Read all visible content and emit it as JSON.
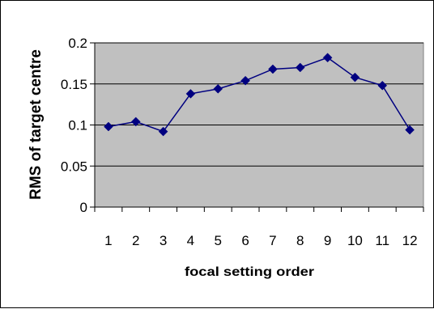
{
  "chart_data": {
    "type": "line",
    "title": "",
    "xlabel": "focal setting order",
    "ylabel": "RMS of target centre",
    "categories": [
      "1",
      "2",
      "3",
      "4",
      "5",
      "6",
      "7",
      "8",
      "9",
      "10",
      "11",
      "12"
    ],
    "series": [
      {
        "values": [
          0.098,
          0.104,
          0.092,
          0.138,
          0.144,
          0.154,
          0.168,
          0.17,
          0.182,
          0.158,
          0.148,
          0.094
        ],
        "color": "#000080",
        "marker": "diamond"
      }
    ],
    "ylim": [
      0,
      0.2
    ],
    "yticks": [
      0,
      0.05,
      0.1,
      0.15,
      0.2
    ],
    "ytick_labels": [
      "0",
      "0.05",
      "0.1",
      "0.15",
      "0.2"
    ],
    "grid": "horizontal",
    "plot_background": "#c0c0c0",
    "legend": "none"
  }
}
